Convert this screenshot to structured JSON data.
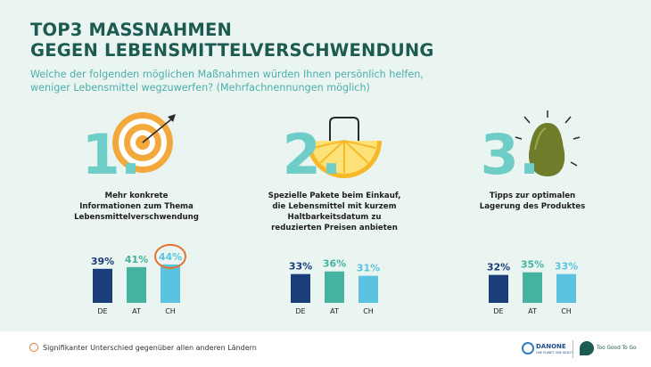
{
  "title_line1": "TOP3 MASSNAHMEN",
  "title_line2": "GEGEN LEBENSMITTELVERSCHWENDUNG",
  "subtitle_line1": "Welche der folgenden möglichen Maßnahmen würden Ihnen persönlich helfen,",
  "subtitle_line2": "weniger Lebensmittel wegzuwerfen? (Mehrfachnennungen möglich)",
  "legend_label": "Signifikanter Unterschied gegenüber allen anderen Ländern",
  "logos": {
    "danone_name": "DANONE",
    "danone_tagline": "ONE PLANET. ONE HEALTH",
    "tgtg_name": "Too Good To Go"
  },
  "colors": {
    "DE": "#1a3e7a",
    "AT": "#45b39f",
    "CH": "#5bc3df",
    "label_DE": "#1a3e7a",
    "label_AT": "#45b39f",
    "label_CH": "#5bc3df",
    "highlight": "#e2742f",
    "rank_number": "#6fcdc8"
  },
  "icons": [
    "target-icon",
    "orange-bag-icon",
    "avocado-icon"
  ],
  "chart_data": [
    {
      "type": "bar",
      "rank": "1.",
      "title_lines": [
        "Mehr konkrete",
        "Informationen zum Thema",
        "Lebensmittelverschwendung"
      ],
      "categories": [
        "DE",
        "AT",
        "CH"
      ],
      "values": [
        39,
        41,
        44
      ],
      "value_labels": [
        "39%",
        "41%",
        "44%"
      ],
      "highlight": "CH"
    },
    {
      "type": "bar",
      "rank": "2.",
      "title_lines": [
        "Spezielle Pakete beim Einkauf,",
        "die Lebensmittel mit kurzem",
        "Haltbarkeitsdatum zu",
        "reduzierten Preisen anbieten"
      ],
      "categories": [
        "DE",
        "AT",
        "CH"
      ],
      "values": [
        33,
        36,
        31
      ],
      "value_labels": [
        "33%",
        "36%",
        "31%"
      ],
      "highlight": null
    },
    {
      "type": "bar",
      "rank": "3.",
      "title_lines": [
        "Tipps zur optimalen",
        "Lagerung des Produktes"
      ],
      "categories": [
        "DE",
        "AT",
        "CH"
      ],
      "values": [
        32,
        35,
        33
      ],
      "value_labels": [
        "32%",
        "35%",
        "33%"
      ],
      "highlight": null
    }
  ]
}
